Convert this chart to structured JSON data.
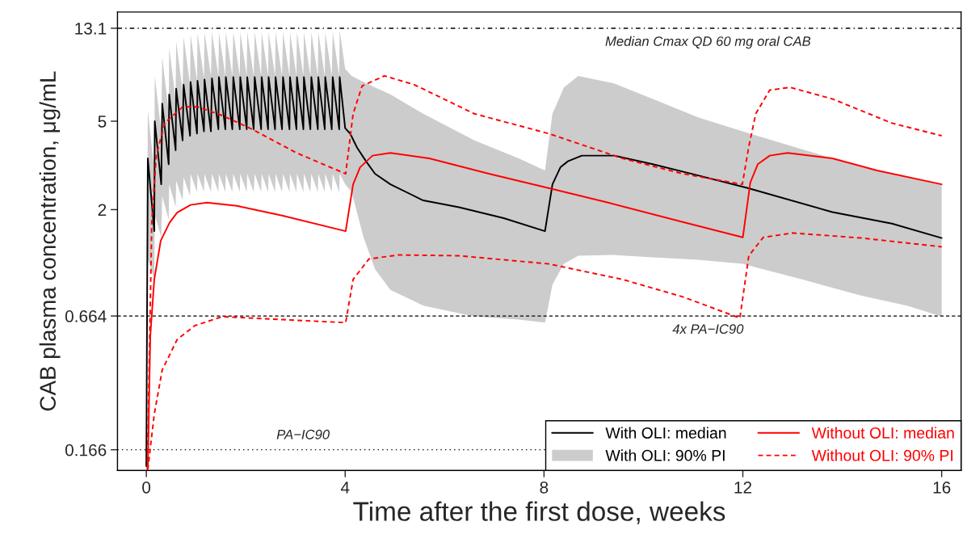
{
  "chart_data": {
    "type": "line",
    "xlabel": "Time after the first dose, weeks",
    "ylabel": "CAB plasma concentration, μg/mL",
    "log": "y",
    "xlim": [
      -0.58,
      16.39
    ],
    "ylim": [
      0.134,
      15.5
    ],
    "xticks": [
      0,
      4,
      8,
      12,
      16
    ],
    "yticks": [
      0.166,
      0.664,
      2,
      5,
      13.1
    ],
    "grid": false,
    "legend": "bottom right",
    "ref_lines": [
      {
        "axis": "y",
        "value": 13.1,
        "label": "Median Cmax QD 60 mg oral CAB",
        "line_style": "dashdot",
        "color": "#000000"
      },
      {
        "axis": "y",
        "value": 0.664,
        "label": "4x PA−IC90",
        "line_style": "dashed",
        "color": "#000000"
      },
      {
        "axis": "y",
        "value": 0.166,
        "label": "PA−IC90",
        "line_style": "dotted",
        "color": "#000000"
      }
    ],
    "series": [
      {
        "name": "With OLI: median",
        "color": "#000000",
        "line_style": "solid",
        "x": [
          0,
          0.03,
          0.16,
          0.17,
          0.3,
          0.32,
          0.45,
          0.46,
          0.59,
          0.6,
          0.73,
          0.75,
          0.88,
          0.89,
          1.02,
          1.03,
          1.16,
          1.17,
          1.3,
          1.32,
          1.45,
          1.46,
          1.59,
          1.6,
          1.73,
          1.75,
          1.88,
          1.89,
          2.02,
          2.03,
          2.16,
          2.18,
          2.31,
          2.32,
          2.45,
          2.46,
          2.59,
          2.6,
          2.73,
          2.75,
          2.88,
          2.89,
          3.02,
          3.03,
          3.16,
          3.17,
          3.3,
          3.32,
          3.45,
          3.46,
          3.59,
          3.6,
          3.73,
          3.75,
          3.88,
          3.89,
          4.0,
          4.1,
          4.24,
          4.42,
          4.6,
          4.91,
          5.57,
          6.29,
          7.19,
          8.02,
          8.17,
          8.33,
          8.48,
          8.76,
          9.41,
          10.19,
          11.1,
          12.1,
          13.8,
          15.0,
          16.0
        ],
        "values": [
          0.14,
          3.4,
          1.6,
          5.0,
          2.6,
          6.0,
          3.2,
          6.6,
          3.7,
          7.0,
          4.1,
          7.3,
          4.3,
          7.5,
          4.4,
          7.6,
          4.5,
          7.7,
          4.5,
          7.8,
          4.6,
          7.9,
          4.6,
          7.9,
          4.6,
          7.9,
          4.6,
          7.9,
          4.6,
          7.9,
          4.6,
          7.9,
          4.6,
          7.9,
          4.6,
          7.9,
          4.6,
          7.9,
          4.6,
          7.9,
          4.6,
          7.9,
          4.6,
          7.9,
          4.6,
          7.9,
          4.6,
          7.9,
          4.6,
          7.9,
          4.6,
          7.9,
          4.6,
          7.9,
          4.6,
          7.9,
          4.65,
          4.4,
          3.8,
          3.3,
          2.9,
          2.6,
          2.2,
          2.05,
          1.83,
          1.6,
          2.6,
          3.1,
          3.3,
          3.5,
          3.5,
          3.2,
          2.85,
          2.5,
          1.95,
          1.73,
          1.49
        ]
      },
      {
        "type": "area",
        "name": "With OLI: 90% PI",
        "color": "#cccccc",
        "x": [
          0,
          0.03,
          0.16,
          0.17,
          0.3,
          0.32,
          0.45,
          0.46,
          0.59,
          0.6,
          0.73,
          0.75,
          0.88,
          0.89,
          1.02,
          1.03,
          1.16,
          1.17,
          1.3,
          1.32,
          1.45,
          1.46,
          1.59,
          1.6,
          1.73,
          1.75,
          1.88,
          1.89,
          2.02,
          2.03,
          2.16,
          2.18,
          2.31,
          2.32,
          2.45,
          2.46,
          2.59,
          2.6,
          2.73,
          2.75,
          2.88,
          2.89,
          3.02,
          3.03,
          3.16,
          3.17,
          3.3,
          3.32,
          3.45,
          3.46,
          3.59,
          3.6,
          3.73,
          3.75,
          3.88,
          3.89,
          4.0,
          4.13,
          4.37,
          4.6,
          4.91,
          5.57,
          6.6,
          7.49,
          8.02,
          8.17,
          8.4,
          8.69,
          9.41,
          10.19,
          11.1,
          11.99,
          13.19,
          14.39,
          15.3,
          16.0
        ],
        "values": [
          null,
          null,
          null,
          null,
          null,
          null,
          null,
          null,
          null,
          null,
          null,
          null,
          null,
          null,
          null,
          null,
          null,
          null,
          null,
          null,
          null,
          null,
          null,
          null,
          null,
          null,
          null,
          null,
          null,
          null,
          null,
          null,
          null,
          null,
          null,
          null,
          null,
          null,
          null,
          null,
          null,
          null,
          null,
          null,
          null,
          null,
          null,
          null,
          null,
          null,
          null,
          null,
          null,
          null,
          null,
          null,
          null,
          null,
          null,
          null,
          null,
          null,
          null,
          null,
          null,
          null,
          null,
          null,
          null,
          null,
          null,
          null,
          null,
          null,
          null,
          null
        ],
        "upper": [
          0.14,
          5.6,
          3.0,
          8.0,
          4.5,
          9.7,
          5.5,
          10.7,
          6.3,
          11.4,
          6.9,
          12.0,
          7.3,
          12.3,
          7.6,
          12.5,
          7.8,
          12.6,
          8.0,
          12.6,
          8.0,
          12.6,
          8.0,
          12.6,
          8.0,
          12.6,
          8.0,
          12.6,
          8.0,
          12.6,
          8.0,
          12.6,
          8.0,
          12.6,
          8.0,
          12.6,
          8.0,
          12.6,
          8.0,
          12.6,
          8.0,
          12.6,
          8.0,
          12.6,
          8.0,
          12.6,
          8.0,
          12.6,
          8.0,
          12.6,
          8.0,
          12.6,
          8.0,
          12.6,
          8.0,
          12.8,
          8.6,
          8.0,
          7.5,
          7.1,
          6.6,
          5.4,
          4.1,
          3.4,
          3.0,
          5.4,
          7.1,
          8.0,
          7.4,
          6.3,
          5.2,
          4.5,
          3.74,
          3.1,
          2.8,
          2.6
        ],
        "lower": [
          0.14,
          1.2,
          0.97,
          1.9,
          1.5,
          2.3,
          1.8,
          2.6,
          2.06,
          2.7,
          2.2,
          2.8,
          2.3,
          2.9,
          2.4,
          2.9,
          2.4,
          2.9,
          2.4,
          2.9,
          2.4,
          2.9,
          2.4,
          2.9,
          2.4,
          2.9,
          2.4,
          2.9,
          2.4,
          2.9,
          2.4,
          2.9,
          2.4,
          2.9,
          2.4,
          2.9,
          2.4,
          2.9,
          2.4,
          2.9,
          2.4,
          2.9,
          2.4,
          2.9,
          2.4,
          2.9,
          2.4,
          2.9,
          2.4,
          2.9,
          2.4,
          2.9,
          2.4,
          2.9,
          2.4,
          2.9,
          2.6,
          2.4,
          1.5,
          1.08,
          0.87,
          0.74,
          0.66,
          0.64,
          0.62,
          0.92,
          1.14,
          1.24,
          1.25,
          1.22,
          1.19,
          1.14,
          0.97,
          0.82,
          0.74,
          0.66
        ]
      },
      {
        "name": "Without OLI: median",
        "color": "#ff0000",
        "line_style": "solid",
        "x": [
          0.03,
          0.08,
          0.16,
          0.29,
          0.47,
          0.62,
          0.89,
          1.22,
          1.82,
          2.73,
          4.01,
          4.16,
          4.3,
          4.55,
          4.91,
          5.69,
          6.89,
          8.09,
          9.29,
          10.79,
          12.0,
          12.15,
          12.3,
          12.54,
          12.9,
          13.8,
          14.7,
          16.0
        ],
        "values": [
          0.135,
          0.54,
          0.97,
          1.45,
          1.75,
          1.94,
          2.1,
          2.15,
          2.08,
          1.88,
          1.6,
          2.6,
          3.1,
          3.5,
          3.6,
          3.4,
          2.9,
          2.5,
          2.15,
          1.76,
          1.5,
          2.65,
          3.2,
          3.5,
          3.6,
          3.4,
          3.0,
          2.6
        ]
      },
      {
        "name": "Without OLI: 90% PI",
        "color": "#ff0000",
        "line_style": "dashed",
        "x": [
          0.02,
          0.11,
          0.2,
          0.37,
          0.73,
          1.04,
          1.53,
          2.13,
          3.02,
          4.01,
          4.16,
          4.34,
          4.79,
          5.39,
          6.6,
          8.09,
          9.58,
          10.79,
          11.99,
          12.12,
          12.26,
          12.54,
          12.95,
          13.8,
          15.0,
          16.0
        ],
        "values": [
          0.135,
          1.77,
          3.5,
          4.9,
          5.8,
          5.8,
          5.3,
          4.6,
          3.6,
          2.9,
          5.4,
          7.2,
          8.0,
          7.3,
          5.4,
          4.4,
          3.4,
          2.9,
          2.6,
          3.85,
          5.4,
          6.9,
          7.1,
          6.3,
          4.9,
          4.3
        ]
      },
      {
        "color": "#ff0000",
        "line_style": "dashed",
        "x": [
          0.03,
          0.16,
          0.32,
          0.62,
          0.97,
          1.53,
          2.73,
          4.01,
          4.16,
          4.48,
          5.08,
          6.29,
          8.09,
          9.58,
          10.79,
          11.94,
          12.12,
          12.41,
          13.0,
          14.39,
          16.0
        ],
        "values": [
          0.135,
          0.24,
          0.38,
          0.52,
          0.6,
          0.66,
          0.64,
          0.62,
          0.97,
          1.2,
          1.25,
          1.24,
          1.14,
          0.97,
          0.81,
          0.65,
          1.24,
          1.5,
          1.57,
          1.49,
          1.36
        ]
      }
    ]
  }
}
